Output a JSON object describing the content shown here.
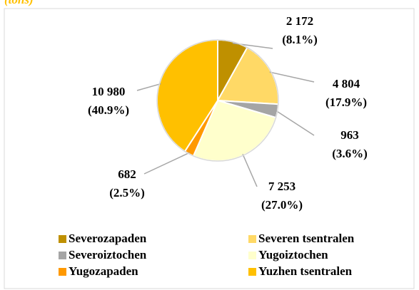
{
  "chart_data": {
    "type": "pie",
    "unit_label": "(tons)",
    "categories": [
      "Severozapaden",
      "Severen tsentralen",
      "Severoiztochen",
      "Yugoiztochen",
      "Yugozapaden",
      "Yuzhen tsentralen"
    ],
    "values": [
      2172,
      4804,
      963,
      7253,
      682,
      10980
    ],
    "value_labels": [
      "2 172",
      "4 804",
      "963",
      "7 253",
      "682",
      "10 980"
    ],
    "percent_labels": [
      "(8.1%)",
      "(17.9%)",
      "(3.6%)",
      "(27.0%)",
      "(2.5%)",
      "(40.9%)"
    ],
    "colors": [
      "#bf9000",
      "#ffd966",
      "#a5a5a5",
      "#ffffcc",
      "#ff9900",
      "#ffc000"
    ],
    "legend": "bottom"
  }
}
